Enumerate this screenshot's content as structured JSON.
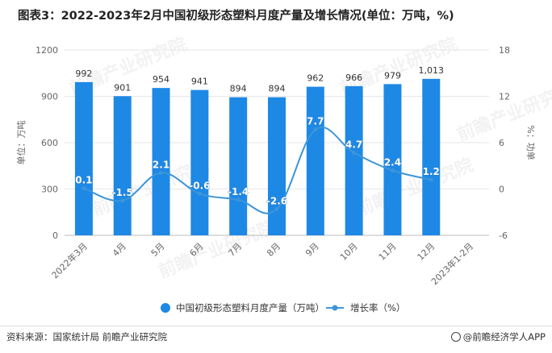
{
  "title": "图表3：2022-2023年2月中国初级形态塑料月度产量及增长情况(单位：万吨，%)",
  "source": "资料来源：国家统计局 前瞻产业研究院",
  "brand": "@前瞻经济学人APP",
  "watermark": "前瞻产业研究院",
  "colors": {
    "bar": "#1E88E5",
    "line": "#3D95D8",
    "axis": "#666666",
    "grid": "#e6e6e6"
  },
  "chart_data": {
    "type": "bar",
    "categories": [
      "2022年3月",
      "4月",
      "5月",
      "6月",
      "7月",
      "8月",
      "9月",
      "10月",
      "11月",
      "12月",
      "2023年1-2月"
    ],
    "series": [
      {
        "name": "中国初级形态塑料月度产量（万吨）",
        "type": "bar",
        "axis": "left",
        "values": [
          992,
          901,
          954,
          941,
          894,
          894,
          962,
          966,
          979,
          1013,
          null
        ],
        "labels": [
          "992",
          "901",
          "954",
          "941",
          "894",
          "894",
          "962",
          "966",
          "979",
          "1,013",
          ""
        ]
      },
      {
        "name": "增长率（%）",
        "type": "line",
        "axis": "right",
        "values": [
          0.1,
          -1.5,
          2.1,
          -0.6,
          -1.4,
          -2.6,
          7.7,
          4.7,
          2.4,
          1.2,
          null
        ],
        "labels": [
          "0.1",
          "-1.5",
          "2.1",
          "-0.6",
          "-1.4",
          "-2.6",
          "7.7",
          "4.7",
          "2.4",
          "1.2",
          ""
        ]
      }
    ],
    "ylabel": "单位：万吨",
    "y2label": "%：功单",
    "ylim": [
      0,
      1200
    ],
    "yticks": [
      "0",
      "300",
      "600",
      "900",
      "1200"
    ],
    "y2lim": [
      -6,
      18
    ],
    "y2ticks": [
      "-6",
      "0",
      "6",
      "12",
      "18"
    ],
    "legend_position": "bottom"
  }
}
